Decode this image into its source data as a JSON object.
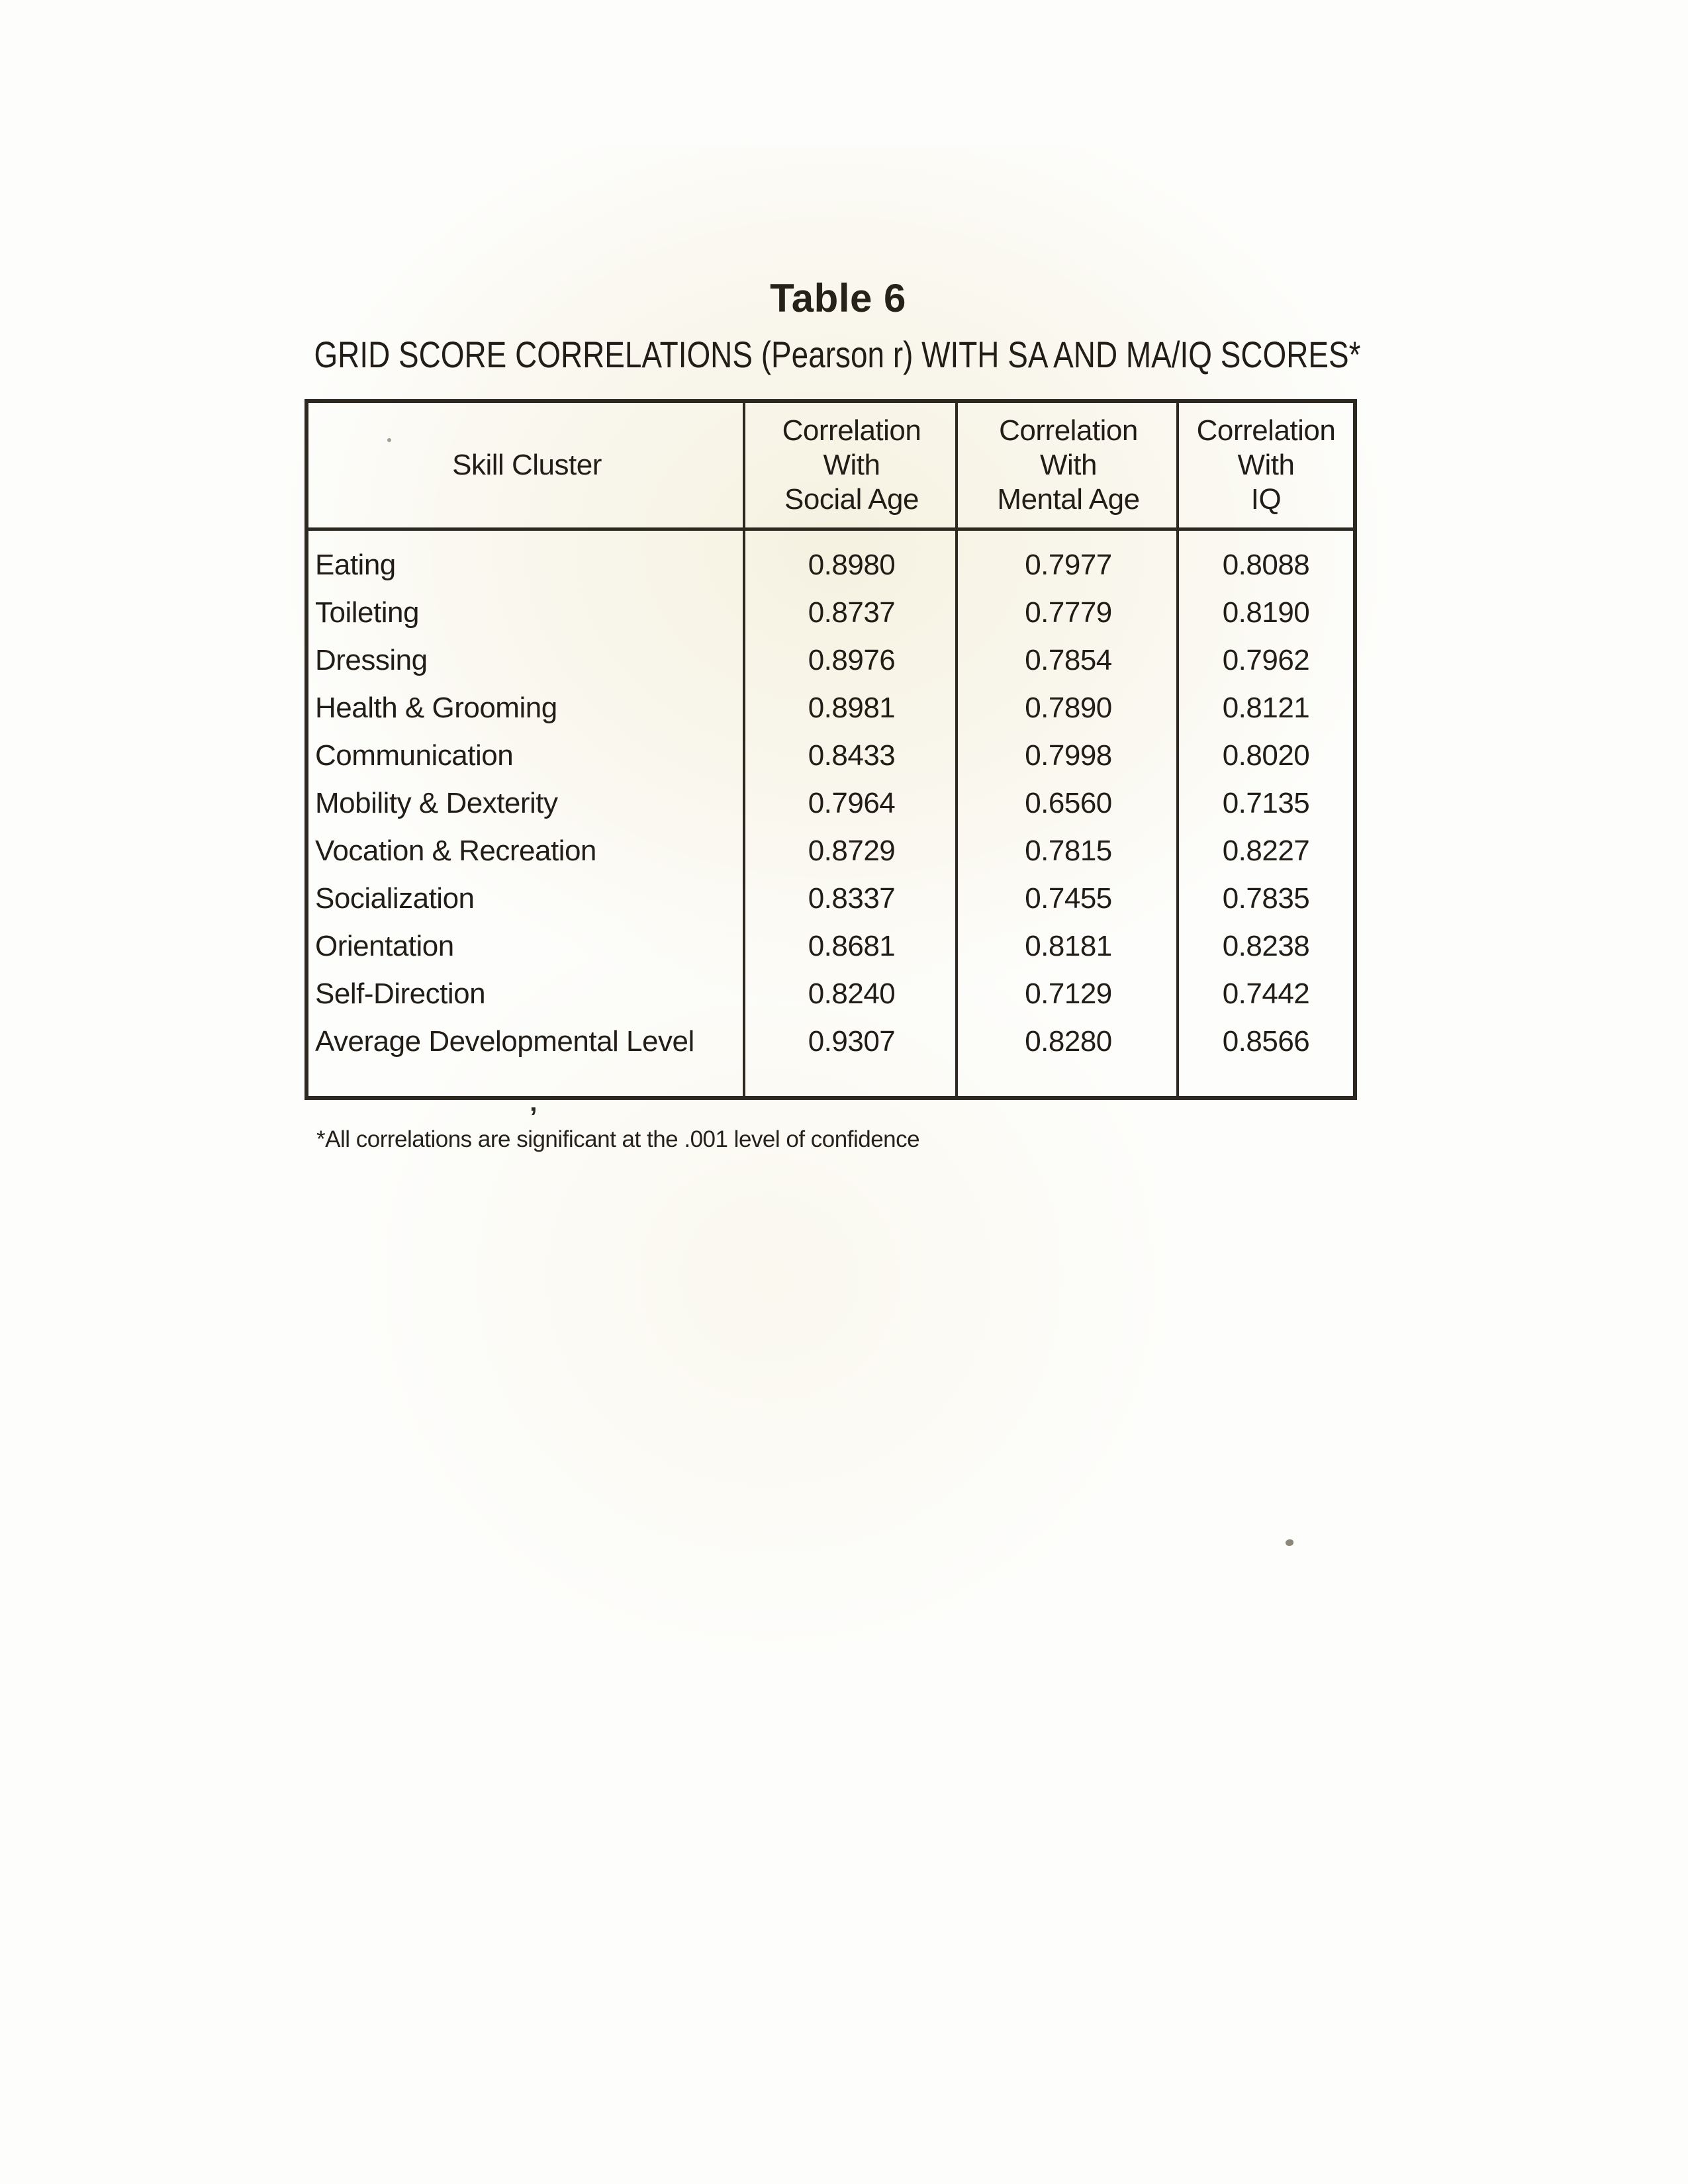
{
  "page": {
    "title": "Table 6",
    "subtitle": "GRID SCORE CORRELATIONS (Pearson r) WITH SA AND MA/IQ SCORES*",
    "footnote": "*All correlations are significant at the .001 level of confidence",
    "stray_mark": "’"
  },
  "colors": {
    "ink": "#221e17",
    "table_border": "#2d2920",
    "page_cream": "#f0e8cc"
  },
  "table": {
    "columns": [
      {
        "id": "skill_cluster",
        "header_lines": [
          "Skill Cluster"
        ]
      },
      {
        "id": "sa",
        "header_lines": [
          "Correlation",
          "With",
          "Social Age"
        ]
      },
      {
        "id": "ma",
        "header_lines": [
          "Correlation",
          "With",
          "Mental Age"
        ]
      },
      {
        "id": "iq",
        "header_lines": [
          "Correlation",
          "With",
          "IQ"
        ]
      }
    ],
    "rows": [
      {
        "skill_cluster": "Eating",
        "sa": "0.8980",
        "ma": "0.7977",
        "iq": "0.8088"
      },
      {
        "skill_cluster": "Toileting",
        "sa": "0.8737",
        "ma": "0.7779",
        "iq": "0.8190"
      },
      {
        "skill_cluster": "Dressing",
        "sa": "0.8976",
        "ma": "0.7854",
        "iq": "0.7962"
      },
      {
        "skill_cluster": "Health & Grooming",
        "sa": "0.8981",
        "ma": "0.7890",
        "iq": "0.8121"
      },
      {
        "skill_cluster": "Communication",
        "sa": "0.8433",
        "ma": "0.7998",
        "iq": "0.8020"
      },
      {
        "skill_cluster": "Mobility & Dexterity",
        "sa": "0.7964",
        "ma": "0.6560",
        "iq": "0.7135"
      },
      {
        "skill_cluster": "Vocation & Recreation",
        "sa": "0.8729",
        "ma": "0.7815",
        "iq": "0.8227"
      },
      {
        "skill_cluster": "Socialization",
        "sa": "0.8337",
        "ma": "0.7455",
        "iq": "0.7835"
      },
      {
        "skill_cluster": "Orientation",
        "sa": "0.8681",
        "ma": "0.8181",
        "iq": "0.8238"
      },
      {
        "skill_cluster": "Self-Direction",
        "sa": "0.8240",
        "ma": "0.7129",
        "iq": "0.7442"
      },
      {
        "skill_cluster": "Average Developmental Level",
        "sa": "0.9307",
        "ma": "0.8280",
        "iq": "0.8566"
      }
    ]
  }
}
